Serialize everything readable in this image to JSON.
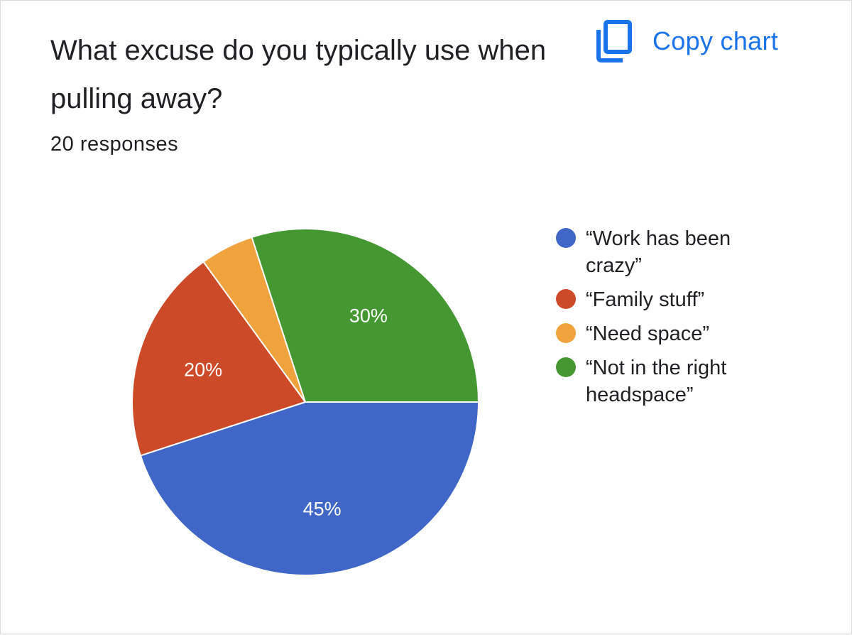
{
  "header": {
    "title": "What excuse do you typically use when pulling away?",
    "responses": "20 responses",
    "copy_label": "Copy chart",
    "copy_icon": "copy-icon"
  },
  "colors": {
    "accent": "#1a73e8"
  },
  "chart_data": {
    "type": "pie",
    "title": "What excuse do you typically use when pulling away?",
    "categories": [
      "“Work has been crazy”",
      "“Family stuff”",
      "“Need space”",
      "“Not in the right headspace”"
    ],
    "values": [
      45,
      20,
      5,
      30
    ],
    "data_labels": [
      "45%",
      "20%",
      "",
      "30%"
    ],
    "colors": [
      "#4066c7",
      "#cc4a28",
      "#f0a33c",
      "#459732"
    ],
    "legend_position": "right"
  },
  "legend": [
    {
      "label": "“Work has been crazy”"
    },
    {
      "label": "“Family stuff”"
    },
    {
      "label": "“Need space”"
    },
    {
      "label": "“Not in the right headspace”"
    }
  ]
}
